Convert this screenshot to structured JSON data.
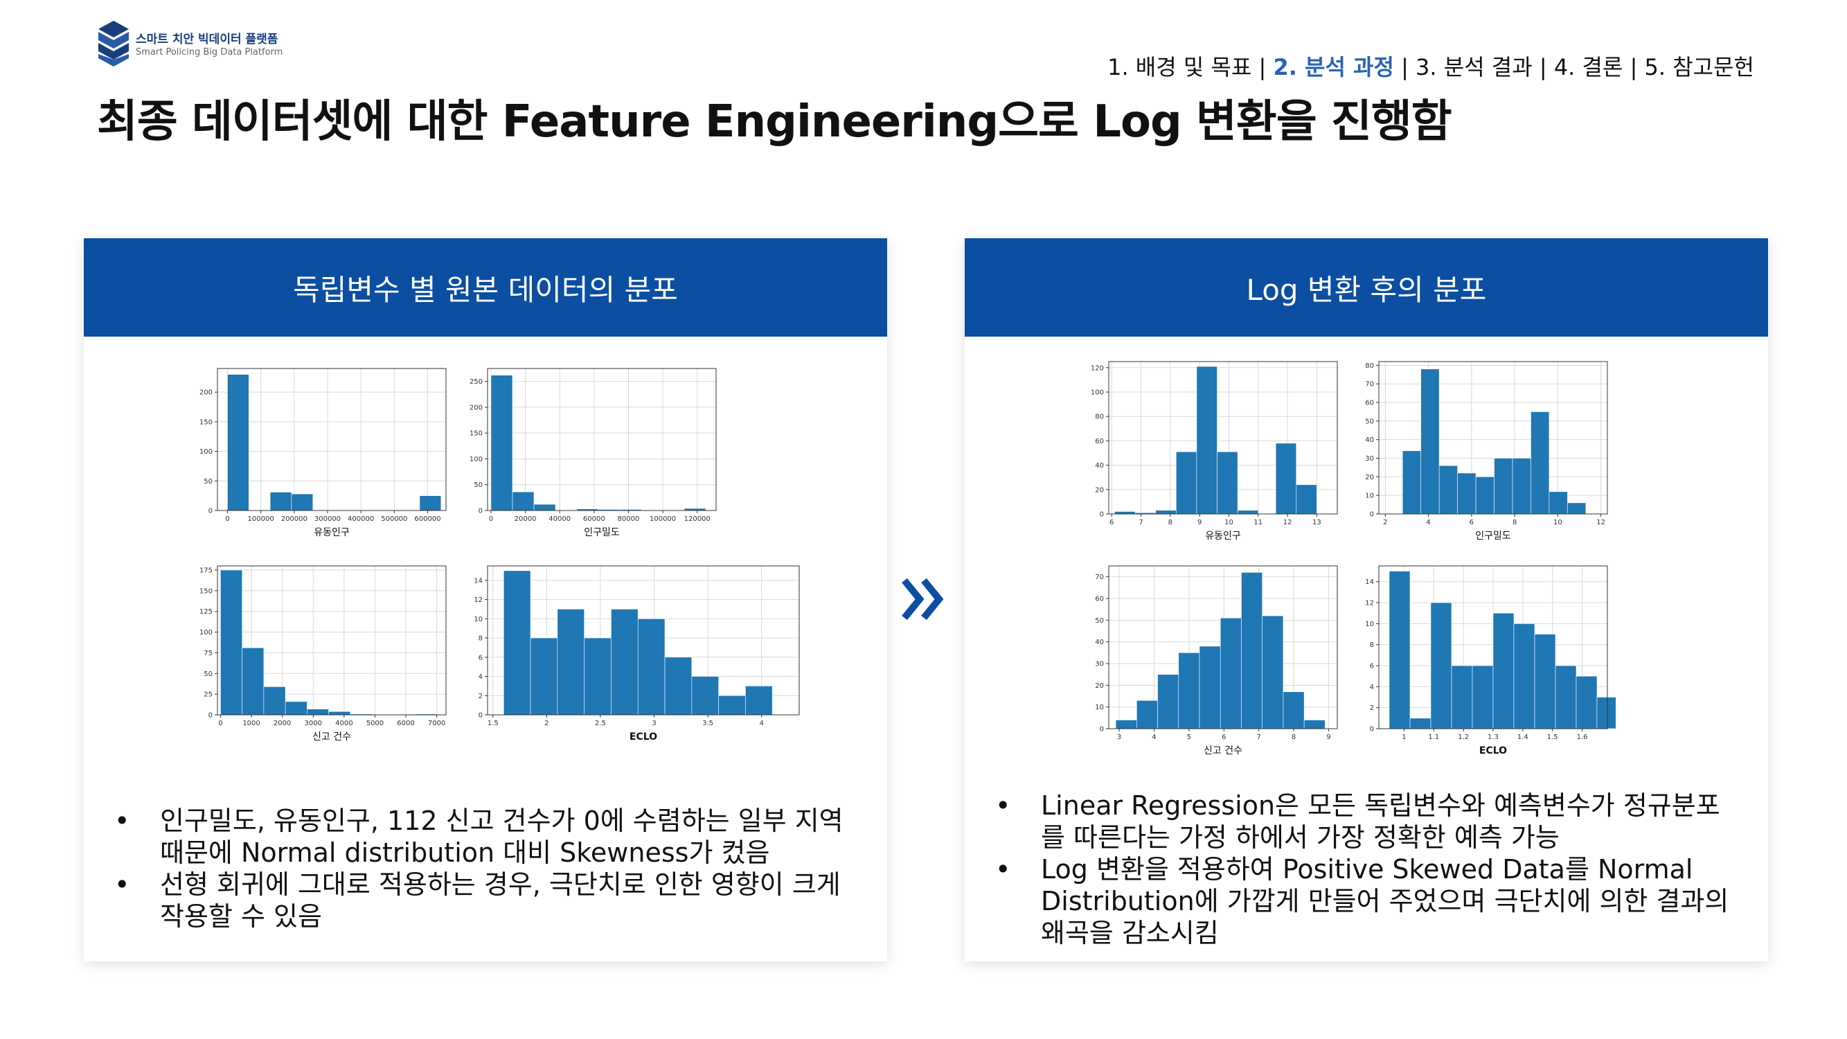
{
  "logo": {
    "name": "스마트 치안 빅데이터 플랫폼",
    "subtitle": "Smart Policing Big Data Platform"
  },
  "nav": [
    {
      "label": "1. 배경 및 목표",
      "active": false
    },
    {
      "label": "2. 분석 과정",
      "active": true
    },
    {
      "label": "3. 분석 결과",
      "active": false
    },
    {
      "label": "4. 결론",
      "active": false
    },
    {
      "label": "5. 참고문헌",
      "active": false
    }
  ],
  "page_title": "최종 데이터셋에 대한 Feature Engineering으로 Log 변환을 진행함",
  "left_panel": {
    "header": "독립변수 별 원본 데이터의 분포",
    "bullets": [
      "인구밀도, 유동인구, 112 신고 건수가 0에 수렴하는 일부 지역 때문에 Normal distribution 대비 Skewness가 컸음",
      "선형 회귀에 그대로 적용하는 경우, 극단치로 인한 영향이 크게 작용할 수 있음"
    ]
  },
  "right_panel": {
    "header": "Log 변환 후의 분포",
    "bullets": [
      "Linear Regression은 모든 독립변수와 예측변수가 정규분포를 따른다는 가정 하에서 가장 정확한 예측 가능",
      "Log 변환을 적용하여 Positive Skewed Data를 Normal Distribution에 가깝게 만들어 주었으며 극단치에 의한 결과의 왜곡을 감소시킴"
    ]
  },
  "colors": {
    "accent": "#0b4ea2",
    "bar": "#1f77b4",
    "nav_active": "#2b63b3"
  },
  "chart_data": [
    {
      "id": "orig-floating",
      "type": "bar",
      "xlabel": "유동인구",
      "xlim": [
        -30000,
        655000
      ],
      "ylim": [
        0,
        240
      ],
      "xticks": [
        0,
        100000,
        200000,
        300000,
        400000,
        500000,
        600000
      ],
      "yticks": [
        0,
        50,
        100,
        150,
        200
      ],
      "bins": [
        [
          0,
          64000,
          230
        ],
        [
          128000,
          192000,
          31
        ],
        [
          192000,
          256000,
          28
        ],
        [
          576000,
          640000,
          25
        ]
      ]
    },
    {
      "id": "orig-density",
      "type": "bar",
      "xlabel": "인구밀도",
      "xlim": [
        -2000,
        131000
      ],
      "ylim": [
        0,
        275
      ],
      "xticks": [
        0,
        20000,
        40000,
        60000,
        80000,
        100000,
        120000
      ],
      "yticks": [
        0,
        50,
        100,
        150,
        200,
        250
      ],
      "bins": [
        [
          0,
          12500,
          262
        ],
        [
          12500,
          25000,
          36
        ],
        [
          25000,
          37500,
          12
        ],
        [
          50000,
          62500,
          3
        ],
        [
          62500,
          75000,
          2
        ],
        [
          75000,
          87500,
          2
        ],
        [
          112500,
          125000,
          4
        ]
      ]
    },
    {
      "id": "orig-reports",
      "type": "bar",
      "xlabel": "신고 건수",
      "xlim": [
        -100,
        7300
      ],
      "ylim": [
        0,
        180
      ],
      "xticks": [
        0,
        1000,
        2000,
        3000,
        4000,
        5000,
        6000,
        7000
      ],
      "yticks": [
        0,
        25,
        50,
        75,
        100,
        125,
        150,
        175
      ],
      "bins": [
        [
          0,
          700,
          175
        ],
        [
          700,
          1400,
          81
        ],
        [
          1400,
          2100,
          34
        ],
        [
          2100,
          2800,
          16
        ],
        [
          2800,
          3500,
          7
        ],
        [
          3500,
          4200,
          4
        ],
        [
          4200,
          4900,
          1
        ],
        [
          6300,
          7000,
          1
        ]
      ]
    },
    {
      "id": "orig-eclo",
      "type": "bar",
      "xlabel": "ECLO",
      "xlim": [
        1.45,
        4.35
      ],
      "ylim": [
        0,
        15.5
      ],
      "xticks": [
        1.5,
        2.0,
        2.5,
        3.0,
        3.5,
        4.0
      ],
      "yticks": [
        0,
        2,
        4,
        6,
        8,
        10,
        12,
        14
      ],
      "bins": [
        [
          1.6,
          1.85,
          15
        ],
        [
          1.85,
          2.1,
          8
        ],
        [
          2.1,
          2.35,
          11
        ],
        [
          2.35,
          2.6,
          8
        ],
        [
          2.6,
          2.85,
          11
        ],
        [
          2.85,
          3.1,
          10
        ],
        [
          3.1,
          3.35,
          6
        ],
        [
          3.35,
          3.6,
          4
        ],
        [
          3.6,
          3.85,
          2
        ],
        [
          3.85,
          4.1,
          3
        ]
      ]
    },
    {
      "id": "log-floating",
      "type": "bar",
      "xlabel": "유동인구",
      "xlim": [
        5.9,
        13.7
      ],
      "ylim": [
        0,
        125
      ],
      "xticks": [
        6,
        7,
        8,
        9,
        10,
        11,
        12,
        13
      ],
      "yticks": [
        0,
        20,
        40,
        60,
        80,
        100,
        120
      ],
      "bins": [
        [
          6.1,
          6.8,
          2
        ],
        [
          6.8,
          7.5,
          1
        ],
        [
          7.5,
          8.2,
          3
        ],
        [
          8.2,
          8.9,
          51
        ],
        [
          8.9,
          9.6,
          121
        ],
        [
          9.6,
          10.3,
          51
        ],
        [
          10.3,
          11.0,
          3
        ],
        [
          11.6,
          12.3,
          58
        ],
        [
          12.3,
          13.0,
          24
        ]
      ]
    },
    {
      "id": "log-density",
      "type": "bar",
      "xlabel": "인구밀도",
      "xlim": [
        1.7,
        12.3
      ],
      "ylim": [
        0,
        82
      ],
      "xticks": [
        2,
        4,
        6,
        8,
        10,
        12
      ],
      "yticks": [
        0,
        10,
        20,
        30,
        40,
        50,
        60,
        70,
        80
      ],
      "bins": [
        [
          2.8,
          3.65,
          34
        ],
        [
          3.65,
          4.5,
          78
        ],
        [
          4.5,
          5.35,
          26
        ],
        [
          5.35,
          6.2,
          22
        ],
        [
          6.2,
          7.05,
          20
        ],
        [
          7.05,
          7.9,
          30
        ],
        [
          7.9,
          8.75,
          30
        ],
        [
          8.75,
          9.6,
          55
        ],
        [
          9.6,
          10.45,
          12
        ],
        [
          10.45,
          11.3,
          6
        ]
      ]
    },
    {
      "id": "log-reports",
      "type": "bar",
      "xlabel": "신고 건수",
      "xlim": [
        2.7,
        9.25
      ],
      "ylim": [
        0,
        75
      ],
      "xticks": [
        3,
        4,
        5,
        6,
        7,
        8,
        9
      ],
      "yticks": [
        0,
        10,
        20,
        30,
        40,
        50,
        60,
        70
      ],
      "bins": [
        [
          2.9,
          3.5,
          4
        ],
        [
          3.5,
          4.1,
          13
        ],
        [
          4.1,
          4.7,
          25
        ],
        [
          4.7,
          5.3,
          35
        ],
        [
          5.3,
          5.9,
          38
        ],
        [
          5.9,
          6.5,
          51
        ],
        [
          6.5,
          7.1,
          72
        ],
        [
          7.1,
          7.7,
          52
        ],
        [
          7.7,
          8.3,
          17
        ],
        [
          8.3,
          8.9,
          4
        ]
      ]
    },
    {
      "id": "log-eclo",
      "type": "bar",
      "xlabel": "ECLO",
      "xlim": [
        0.915,
        1.685
      ],
      "ylim": [
        0,
        15.5
      ],
      "xticks": [
        1.0,
        1.1,
        1.2,
        1.3,
        1.4,
        1.5,
        1.6
      ],
      "yticks": [
        0,
        2,
        4,
        6,
        8,
        10,
        12,
        14
      ],
      "bins": [
        [
          0.95,
          1.02,
          15
        ],
        [
          1.02,
          1.09,
          1
        ],
        [
          1.09,
          1.16,
          12
        ],
        [
          1.16,
          1.23,
          6
        ],
        [
          1.23,
          1.3,
          6
        ],
        [
          1.3,
          1.37,
          11
        ],
        [
          1.37,
          1.44,
          10
        ],
        [
          1.44,
          1.51,
          9
        ],
        [
          1.51,
          1.58,
          6
        ],
        [
          1.58,
          1.65,
          5
        ],
        [
          1.65,
          1.72,
          3
        ]
      ]
    }
  ]
}
